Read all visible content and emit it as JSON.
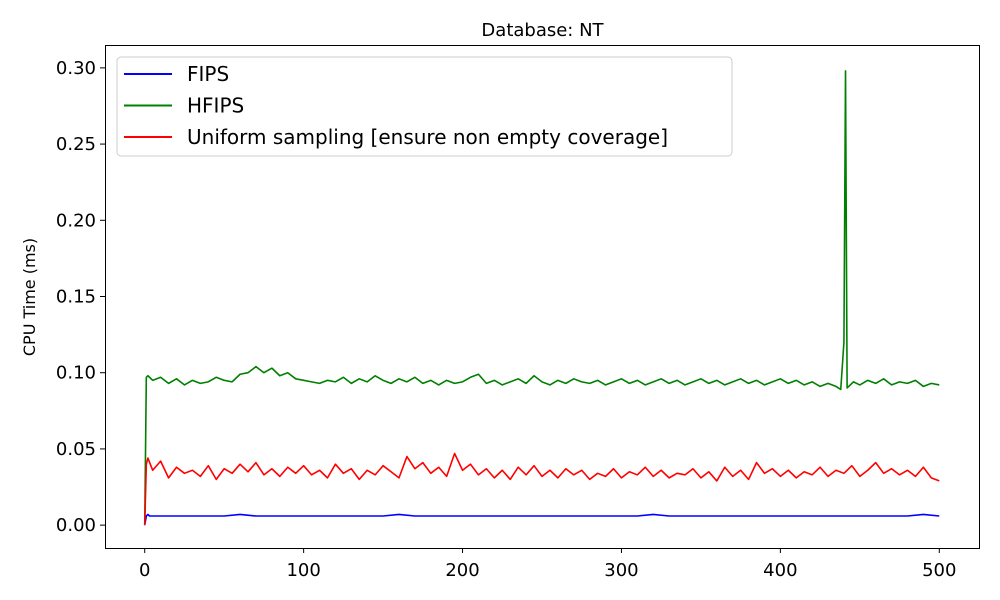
{
  "chart_data": {
    "type": "line",
    "title": "Database: NT",
    "xlabel": "",
    "ylabel": "CPU Time (ms)",
    "xlim": [
      -25,
      525
    ],
    "ylim": [
      -0.015,
      0.315
    ],
    "xticks": [
      0,
      100,
      200,
      300,
      400,
      500
    ],
    "yticks": [
      0.0,
      0.05,
      0.1,
      0.15,
      0.2,
      0.25,
      0.3
    ],
    "ytick_labels": [
      "0.00",
      "0.05",
      "0.10",
      "0.15",
      "0.20",
      "0.25",
      "0.30"
    ],
    "grid": false,
    "legend_position": "top-left",
    "series": [
      {
        "name": "FIPS",
        "color": "#0000ff",
        "x": [
          0,
          1,
          2,
          3,
          5,
          10,
          20,
          30,
          40,
          50,
          60,
          70,
          80,
          90,
          100,
          110,
          120,
          130,
          140,
          150,
          160,
          170,
          180,
          190,
          200,
          210,
          220,
          230,
          240,
          250,
          260,
          270,
          280,
          290,
          300,
          310,
          320,
          330,
          340,
          350,
          360,
          370,
          380,
          390,
          400,
          410,
          420,
          430,
          440,
          450,
          460,
          470,
          480,
          490,
          500
        ],
        "y": [
          0.0,
          0.006,
          0.007,
          0.006,
          0.006,
          0.006,
          0.006,
          0.006,
          0.006,
          0.006,
          0.007,
          0.006,
          0.006,
          0.006,
          0.006,
          0.006,
          0.006,
          0.006,
          0.006,
          0.006,
          0.007,
          0.006,
          0.006,
          0.006,
          0.006,
          0.006,
          0.006,
          0.006,
          0.006,
          0.006,
          0.006,
          0.006,
          0.006,
          0.006,
          0.006,
          0.006,
          0.007,
          0.006,
          0.006,
          0.006,
          0.006,
          0.006,
          0.006,
          0.006,
          0.006,
          0.006,
          0.006,
          0.006,
          0.006,
          0.006,
          0.006,
          0.006,
          0.006,
          0.007,
          0.006
        ]
      },
      {
        "name": "HFIPS",
        "color": "#008000",
        "x": [
          0,
          1,
          2,
          5,
          10,
          15,
          20,
          25,
          30,
          35,
          40,
          45,
          50,
          55,
          60,
          65,
          70,
          75,
          80,
          85,
          90,
          95,
          100,
          105,
          110,
          115,
          120,
          125,
          130,
          135,
          140,
          145,
          150,
          155,
          160,
          165,
          170,
          175,
          180,
          185,
          190,
          195,
          200,
          205,
          210,
          215,
          220,
          225,
          230,
          235,
          240,
          245,
          250,
          255,
          260,
          265,
          270,
          275,
          280,
          285,
          290,
          295,
          300,
          305,
          310,
          315,
          320,
          325,
          330,
          335,
          340,
          345,
          350,
          355,
          360,
          365,
          370,
          375,
          380,
          385,
          390,
          395,
          400,
          405,
          410,
          415,
          420,
          425,
          430,
          435,
          438,
          440,
          441,
          442,
          444,
          446,
          450,
          455,
          460,
          465,
          470,
          475,
          480,
          485,
          490,
          495,
          500
        ],
        "y": [
          0.0,
          0.097,
          0.098,
          0.095,
          0.097,
          0.093,
          0.096,
          0.092,
          0.095,
          0.093,
          0.094,
          0.097,
          0.095,
          0.094,
          0.099,
          0.1,
          0.104,
          0.1,
          0.103,
          0.098,
          0.1,
          0.096,
          0.095,
          0.094,
          0.093,
          0.095,
          0.094,
          0.097,
          0.093,
          0.096,
          0.094,
          0.098,
          0.095,
          0.093,
          0.096,
          0.094,
          0.097,
          0.093,
          0.095,
          0.092,
          0.095,
          0.093,
          0.094,
          0.097,
          0.099,
          0.093,
          0.095,
          0.092,
          0.094,
          0.096,
          0.093,
          0.098,
          0.094,
          0.092,
          0.095,
          0.093,
          0.096,
          0.094,
          0.093,
          0.095,
          0.092,
          0.094,
          0.096,
          0.093,
          0.095,
          0.092,
          0.094,
          0.096,
          0.093,
          0.095,
          0.092,
          0.094,
          0.096,
          0.093,
          0.095,
          0.092,
          0.094,
          0.096,
          0.093,
          0.095,
          0.092,
          0.094,
          0.096,
          0.093,
          0.095,
          0.092,
          0.094,
          0.091,
          0.093,
          0.091,
          0.089,
          0.12,
          0.298,
          0.09,
          0.092,
          0.094,
          0.092,
          0.095,
          0.093,
          0.096,
          0.092,
          0.094,
          0.093,
          0.095,
          0.091,
          0.093,
          0.092
        ]
      },
      {
        "name": "Uniform sampling [ensure non empty coverage]",
        "color": "#ff0000",
        "x": [
          0,
          1,
          2,
          5,
          10,
          15,
          20,
          25,
          30,
          35,
          40,
          45,
          50,
          55,
          60,
          65,
          70,
          75,
          80,
          85,
          90,
          95,
          100,
          105,
          110,
          115,
          120,
          125,
          130,
          135,
          140,
          145,
          150,
          155,
          160,
          165,
          170,
          175,
          180,
          185,
          190,
          195,
          200,
          205,
          210,
          215,
          220,
          225,
          230,
          235,
          240,
          245,
          250,
          255,
          260,
          265,
          270,
          275,
          280,
          285,
          290,
          295,
          300,
          305,
          310,
          315,
          320,
          325,
          330,
          335,
          340,
          345,
          350,
          355,
          360,
          365,
          370,
          375,
          380,
          385,
          390,
          395,
          400,
          405,
          410,
          415,
          420,
          425,
          430,
          435,
          440,
          445,
          450,
          455,
          460,
          465,
          470,
          475,
          480,
          485,
          490,
          495,
          500
        ],
        "y": [
          0.0,
          0.04,
          0.044,
          0.036,
          0.042,
          0.031,
          0.038,
          0.034,
          0.036,
          0.032,
          0.039,
          0.03,
          0.037,
          0.034,
          0.04,
          0.035,
          0.041,
          0.033,
          0.037,
          0.032,
          0.038,
          0.034,
          0.039,
          0.033,
          0.036,
          0.031,
          0.04,
          0.034,
          0.037,
          0.03,
          0.036,
          0.033,
          0.039,
          0.035,
          0.031,
          0.045,
          0.037,
          0.041,
          0.034,
          0.038,
          0.032,
          0.047,
          0.036,
          0.04,
          0.033,
          0.037,
          0.031,
          0.036,
          0.03,
          0.038,
          0.033,
          0.039,
          0.032,
          0.036,
          0.031,
          0.037,
          0.033,
          0.036,
          0.03,
          0.034,
          0.032,
          0.037,
          0.031,
          0.035,
          0.033,
          0.038,
          0.032,
          0.036,
          0.031,
          0.034,
          0.033,
          0.037,
          0.031,
          0.035,
          0.029,
          0.038,
          0.032,
          0.036,
          0.03,
          0.041,
          0.034,
          0.037,
          0.032,
          0.036,
          0.031,
          0.035,
          0.033,
          0.038,
          0.032,
          0.036,
          0.034,
          0.039,
          0.032,
          0.036,
          0.041,
          0.034,
          0.037,
          0.033,
          0.036,
          0.032,
          0.038,
          0.031,
          0.029
        ]
      }
    ]
  }
}
